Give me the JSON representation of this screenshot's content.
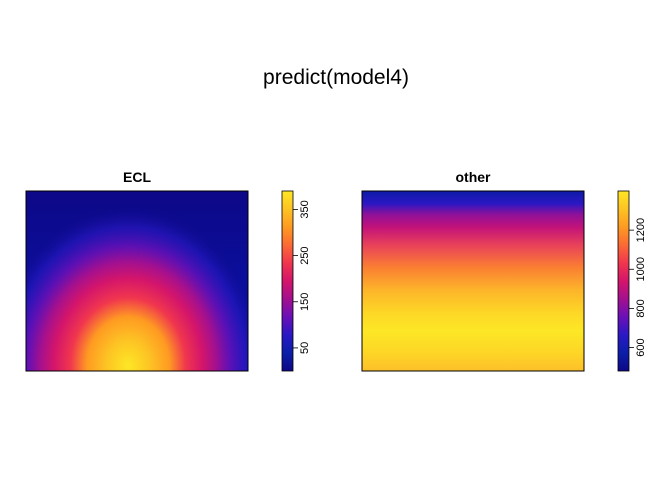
{
  "title": "predict(model4)",
  "colors": {
    "scale": [
      "#0d0887",
      "#0b1fa8",
      "#2a18c4",
      "#6a10b8",
      "#a3108f",
      "#d4156b",
      "#f0364e",
      "#fb6a35",
      "#fe9a22",
      "#fdc324",
      "#fde725"
    ]
  },
  "chart_data": [
    {
      "type": "heatmap",
      "title": "ECL",
      "xlabel": "",
      "ylabel": "",
      "colorbar": {
        "range": [
          0,
          390
        ],
        "ticks": [
          50,
          150,
          250,
          350
        ],
        "tick_labels": [
          "50",
          "150",
          "250",
          "350"
        ]
      },
      "pattern": "radial peak near bottom-center, decreasing toward top",
      "peak_value": 390,
      "min_value": 0
    },
    {
      "type": "heatmap",
      "title": "other",
      "xlabel": "",
      "ylabel": "",
      "colorbar": {
        "range": [
          480,
          1400
        ],
        "ticks": [
          600,
          800,
          1000,
          1200
        ],
        "tick_labels": [
          "600",
          "800",
          "1000",
          "1200"
        ]
      },
      "pattern": "vertical gradient: low at top, peak at lower-middle, slightly lower at bottom",
      "peak_value": 1400,
      "min_value": 480
    }
  ]
}
